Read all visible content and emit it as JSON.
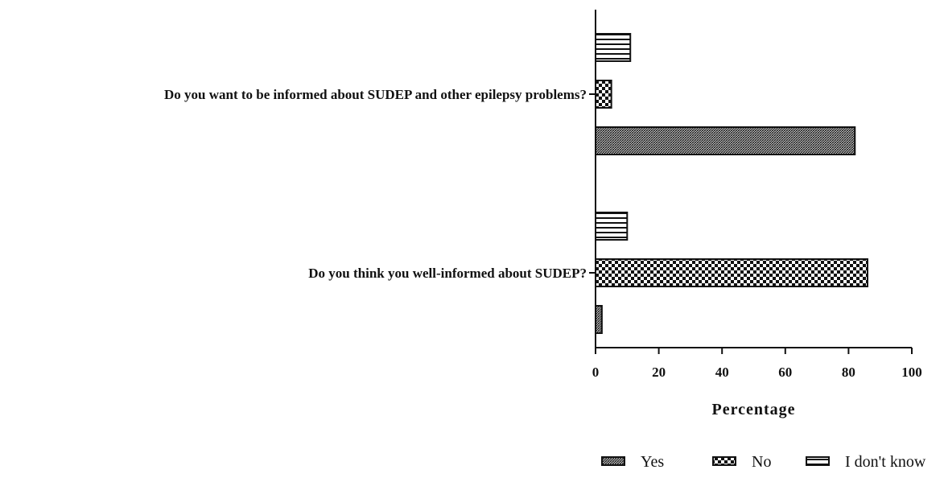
{
  "chart_data": {
    "type": "bar",
    "orientation": "horizontal",
    "categories": [
      "Do you want to be informed about SUDEP and other epilepsy problems?",
      "Do you think you well-informed about SUDEP?"
    ],
    "series": [
      {
        "name": "Yes",
        "values": [
          82,
          2
        ],
        "pattern": "dense-hatch"
      },
      {
        "name": "No",
        "values": [
          5,
          86
        ],
        "pattern": "checkerboard"
      },
      {
        "name": "I don't know",
        "values": [
          11,
          10
        ],
        "pattern": "horizontal-stripes"
      }
    ],
    "xlabel": "Percentage",
    "xlim": [
      0,
      100
    ],
    "xticks": [
      "0",
      "20",
      "40",
      "60",
      "80",
      "100"
    ],
    "legend_position": "bottom-right",
    "grid": false,
    "colors": {
      "ink": "#111111",
      "background": "#ffffff"
    }
  }
}
